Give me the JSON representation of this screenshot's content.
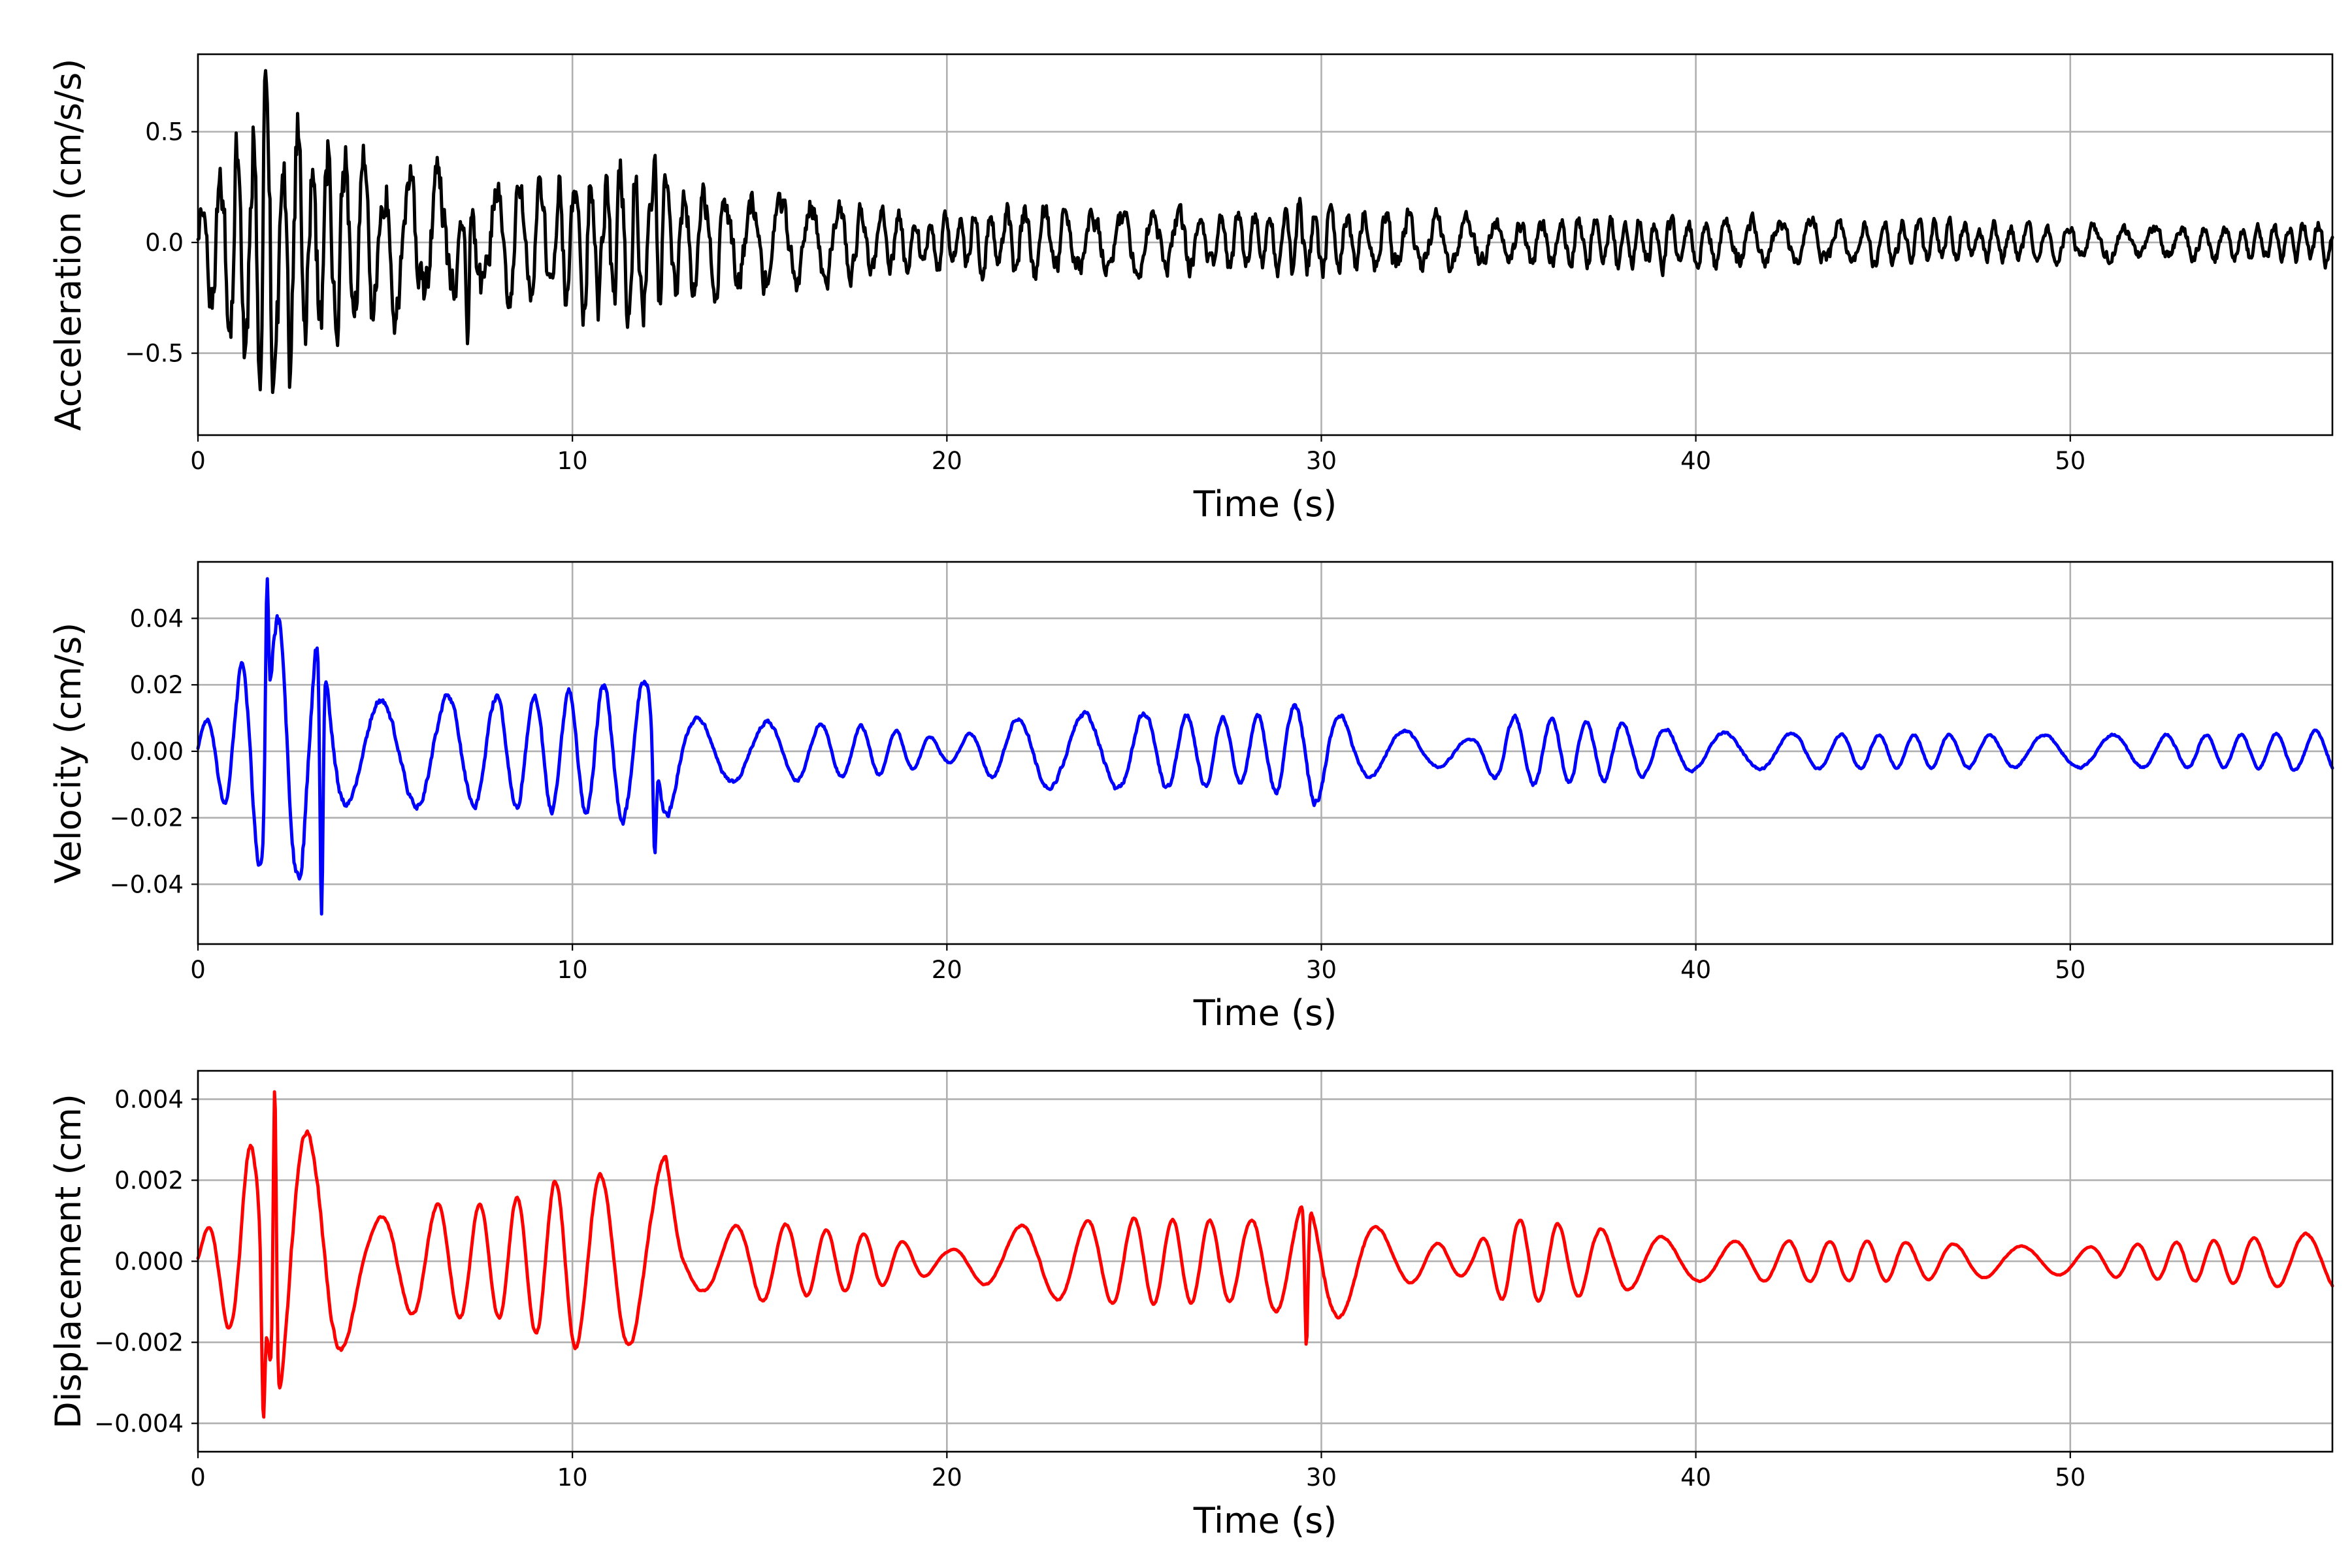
{
  "chart_data": [
    {
      "type": "line",
      "xlabel": "Time (s)",
      "ylabel": "Acceleration (cm/s/s)",
      "xlim": [
        0,
        57
      ],
      "ylim": [
        -0.87,
        0.85
      ],
      "xticks": [
        0,
        10,
        20,
        30,
        40,
        50
      ],
      "xtick_labels": [
        "0",
        "10",
        "20",
        "30",
        "40",
        "50"
      ],
      "yticks": [
        -0.5,
        0.0,
        0.5
      ],
      "ytick_labels": [
        "−0.5",
        "0.0",
        "0.5"
      ],
      "grid": true,
      "color": "#000000",
      "envelope": {
        "t": [
          0,
          1,
          1.8,
          2.5,
          3.2,
          4,
          6,
          8,
          10,
          12.2,
          13,
          15,
          18,
          20,
          22,
          25,
          28,
          30,
          35,
          40,
          45,
          50,
          55,
          57
        ],
        "amp": [
          0.15,
          0.55,
          0.75,
          0.6,
          0.5,
          0.4,
          0.32,
          0.3,
          0.32,
          0.38,
          0.25,
          0.22,
          0.15,
          0.12,
          0.18,
          0.15,
          0.14,
          0.17,
          0.1,
          0.12,
          0.1,
          0.08,
          0.08,
          0.1
        ]
      },
      "peaks": [
        {
          "t": 1.8,
          "y": 0.78
        },
        {
          "t": 2.0,
          "y": -0.68
        },
        {
          "t": 7.2,
          "y": -0.46
        },
        {
          "t": 12.2,
          "y": 0.4
        }
      ]
    },
    {
      "type": "line",
      "xlabel": "Time (s)",
      "ylabel": "Velocity (cm/s)",
      "xlim": [
        0,
        57
      ],
      "ylim": [
        -0.058,
        0.057
      ],
      "xticks": [
        0,
        10,
        20,
        30,
        40,
        50
      ],
      "xtick_labels": [
        "0",
        "10",
        "20",
        "30",
        "40",
        "50"
      ],
      "yticks": [
        -0.04,
        -0.02,
        0.0,
        0.02,
        0.04
      ],
      "ytick_labels": [
        "−0.04",
        "−0.02",
        "0.00",
        "0.02",
        "0.04"
      ],
      "grid": true,
      "color": "#0000ff",
      "envelope": {
        "t": [
          0,
          0.8,
          1.5,
          1.9,
          2.7,
          3.1,
          3.5,
          4,
          6,
          8,
          10,
          12,
          12.5,
          13,
          15,
          18,
          20,
          22,
          25,
          28,
          29.8,
          31,
          34,
          35,
          38,
          40,
          45,
          50,
          55,
          57
        ],
        "amp": [
          0.008,
          0.02,
          0.04,
          0.05,
          0.045,
          0.048,
          0.03,
          0.018,
          0.02,
          0.02,
          0.022,
          0.027,
          0.025,
          0.012,
          0.011,
          0.009,
          0.004,
          0.013,
          0.014,
          0.012,
          0.019,
          0.01,
          0.004,
          0.013,
          0.01,
          0.007,
          0.006,
          0.006,
          0.006,
          0.008
        ]
      },
      "peaks": [
        {
          "t": 1.85,
          "y": 0.052
        },
        {
          "t": 3.3,
          "y": -0.049
        },
        {
          "t": 12.2,
          "y": -0.031
        }
      ]
    },
    {
      "type": "line",
      "xlabel": "Time (s)",
      "ylabel": "Displacement (cm)",
      "xlim": [
        0,
        57
      ],
      "ylim": [
        -0.0047,
        0.0047
      ],
      "xticks": [
        0,
        10,
        20,
        30,
        40,
        50
      ],
      "xtick_labels": [
        "0",
        "10",
        "20",
        "30",
        "40",
        "50"
      ],
      "yticks": [
        -0.004,
        -0.002,
        0.0,
        0.002,
        0.004
      ],
      "ytick_labels": [
        "−0.004",
        "−0.002",
        "0.000",
        "0.002",
        "0.004"
      ],
      "grid": true,
      "color": "#ff0000",
      "envelope": {
        "t": [
          0,
          0.6,
          1.3,
          2.0,
          2.8,
          3.5,
          4.5,
          6,
          8,
          10,
          12,
          12.5,
          13,
          15,
          18,
          20,
          22,
          25,
          28,
          30,
          32,
          34,
          35,
          38,
          40,
          45,
          50,
          55,
          57
        ],
        "amp": [
          0.0006,
          0.0015,
          0.0033,
          0.0042,
          0.004,
          0.0035,
          0.0012,
          0.0017,
          0.0017,
          0.0026,
          0.0025,
          0.0032,
          0.0008,
          0.0012,
          0.0008,
          0.0003,
          0.0011,
          0.0013,
          0.0012,
          0.002,
          0.0007,
          0.0004,
          0.0013,
          0.0009,
          0.0006,
          0.0006,
          0.0004,
          0.0007,
          0.0009
        ]
      },
      "peaks": [
        {
          "t": 2.05,
          "y": 0.0043
        },
        {
          "t": 1.75,
          "y": -0.0039
        },
        {
          "t": 29.6,
          "y": -0.0021
        }
      ]
    }
  ]
}
